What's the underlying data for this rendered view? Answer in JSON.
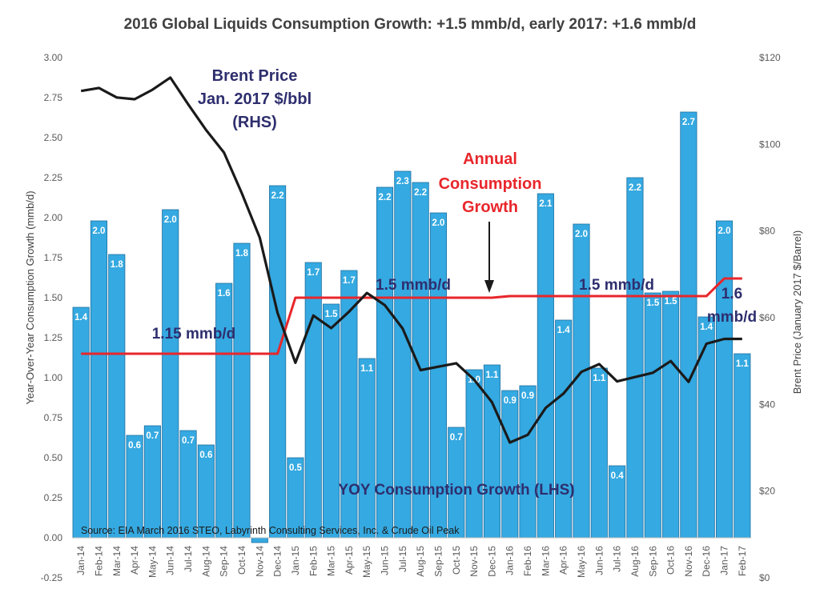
{
  "chart_data": {
    "type": "bar",
    "title": "2016 Global Liquids Consumption Growth: +1.5 mmb/d, early 2017: +1.6 mmb/d",
    "categories": [
      "Jan-14",
      "Feb-14",
      "Mar-14",
      "Apr-14",
      "May-14",
      "Jun-14",
      "Jul-14",
      "Aug-14",
      "Sep-14",
      "Oct-14",
      "Nov-14",
      "Dec-14",
      "Jan-15",
      "Feb-15",
      "Mar-15",
      "Apr-15",
      "May-15",
      "Jun-15",
      "Jul-15",
      "Aug-15",
      "Sep-15",
      "Oct-15",
      "Nov-15",
      "Dec-15",
      "Jan-16",
      "Feb-16",
      "Mar-16",
      "Apr-16",
      "May-16",
      "Jun-16",
      "Jul-16",
      "Aug-16",
      "Sep-16",
      "Oct-16",
      "Nov-16",
      "Dec-16",
      "Jan-17",
      "Feb-17"
    ],
    "ylabel": "Year-Over-Year Consumption Growth (mmb/d)",
    "y2label": "Brent Price (January 2017 $/Barrel)",
    "ylim": [
      -0.25,
      3.0
    ],
    "y2lim": [
      0,
      120
    ],
    "y_ticks": [
      "-0.25",
      "0.00",
      "0.25",
      "0.50",
      "0.75",
      "1.00",
      "1.25",
      "1.50",
      "1.75",
      "2.00",
      "2.25",
      "2.50",
      "2.75",
      "3.00"
    ],
    "y2_ticks": [
      "$0",
      "$20",
      "$40",
      "$60",
      "$80",
      "$100",
      "$120"
    ],
    "grid": false,
    "series": [
      {
        "name": "YOY Consumption Growth (LHS)",
        "kind": "bar",
        "axis": "left",
        "color": "#35a9e1",
        "values": [
          1.44,
          1.98,
          1.77,
          0.64,
          0.7,
          2.05,
          0.67,
          0.58,
          1.59,
          1.84,
          -0.03,
          2.2,
          0.5,
          1.72,
          1.46,
          1.67,
          1.12,
          2.19,
          2.29,
          2.22,
          2.03,
          0.69,
          1.05,
          1.08,
          0.92,
          0.95,
          2.15,
          1.36,
          1.96,
          1.06,
          0.45,
          2.25,
          1.53,
          1.54,
          2.66,
          1.38,
          1.98,
          1.15
        ],
        "labels": [
          "1.4",
          "2.0",
          "1.8",
          "0.6",
          "0.7",
          "2.0",
          "0.7",
          "0.6",
          "1.6",
          "1.8",
          "",
          "2.2",
          "0.5",
          "1.7",
          "1.5",
          "1.7",
          "1.1",
          "2.2",
          "2.3",
          "2.2",
          "2.0",
          "0.7",
          "1.0",
          "1.1",
          "0.9",
          "0.9",
          "2.1",
          "1.4",
          "2.0",
          "1.1",
          "0.4",
          "2.2",
          "1.5",
          "1.5",
          "2.7",
          "1.4",
          "2.0",
          "1.1"
        ]
      },
      {
        "name": "Brent Price Jan. 2017 $/bbl (RHS)",
        "kind": "line",
        "axis": "right",
        "color": "#1a1a1a",
        "values": [
          112.3,
          113.0,
          110.8,
          110.4,
          112.6,
          115.4,
          109.2,
          103.3,
          98.1,
          88.7,
          78.5,
          61.1,
          49.6,
          60.5,
          57.6,
          61.4,
          65.7,
          62.9,
          57.5,
          47.9,
          48.7,
          49.5,
          45.7,
          40.5,
          31.2,
          33.0,
          39.2,
          42.5,
          47.5,
          49.3,
          45.3,
          46.3,
          47.3,
          50.0,
          45.2,
          54.0,
          55.1,
          55.1
        ]
      },
      {
        "name": "Annual Consumption Growth",
        "kind": "line",
        "axis": "left",
        "color": "#e8262b",
        "values": [
          1.15,
          1.15,
          1.15,
          1.15,
          1.15,
          1.15,
          1.15,
          1.15,
          1.15,
          1.15,
          1.15,
          1.15,
          1.5,
          1.5,
          1.5,
          1.5,
          1.5,
          1.5,
          1.5,
          1.5,
          1.5,
          1.5,
          1.5,
          1.5,
          1.51,
          1.51,
          1.51,
          1.51,
          1.51,
          1.51,
          1.51,
          1.51,
          1.51,
          1.51,
          1.51,
          1.51,
          1.62,
          1.62
        ]
      }
    ],
    "annotations": {
      "brent_price": [
        "Brent Price",
        "Jan. 2017 $/bbl",
        "(RHS)"
      ],
      "annual_growth": [
        "Annual",
        "Consumption",
        "Growth"
      ],
      "level_2014": "1.15 mmb/d",
      "level_2015": "1.5 mmb/d",
      "level_2016": "1.5 mmb/d",
      "level_2017": [
        "1.6",
        "mmb/d"
      ],
      "yoy_label": "YOY Consumption Growth (LHS)",
      "source": "Source: EIA March 2016 STEO, Labyrinth Consulting Services, Inc. & Crude Oil Peak"
    }
  }
}
